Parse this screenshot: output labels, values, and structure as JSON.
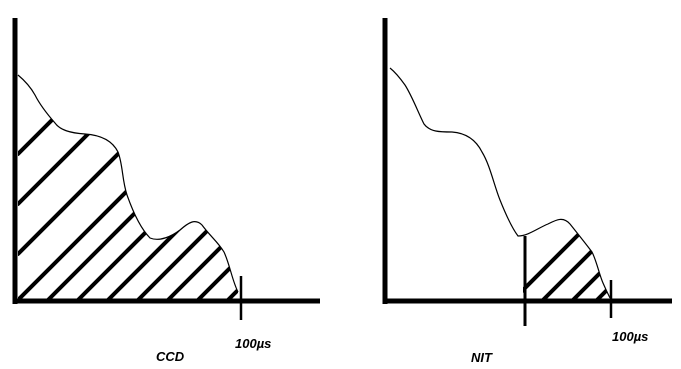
{
  "left_panel": {
    "caption": "CCD",
    "time_label": "100µs"
  },
  "right_panel": {
    "caption": "NIT",
    "time_label": "100µs"
  }
}
